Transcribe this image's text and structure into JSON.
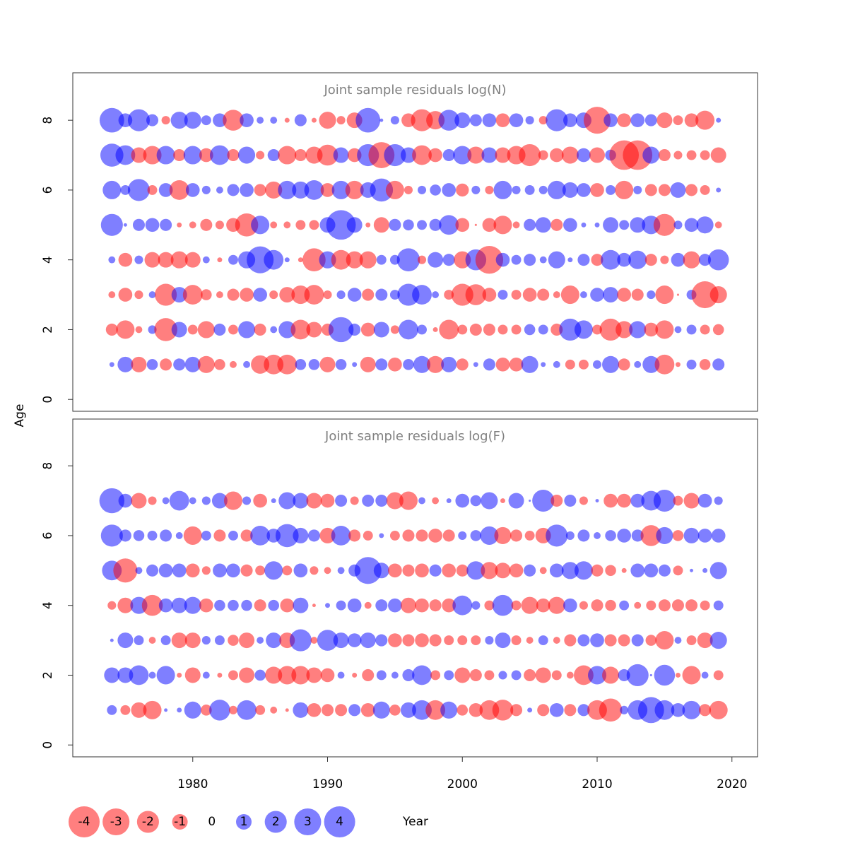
{
  "chart_data": [
    {
      "type": "bubble",
      "title": "Joint sample residuals log(N)",
      "x": [
        1974,
        1975,
        1976,
        1977,
        1978,
        1979,
        1980,
        1981,
        1982,
        1983,
        1984,
        1985,
        1986,
        1987,
        1988,
        1989,
        1990,
        1991,
        1992,
        1993,
        1994,
        1995,
        1996,
        1997,
        1998,
        1999,
        2000,
        2001,
        2002,
        2003,
        2004,
        2005,
        2006,
        2007,
        2008,
        2009,
        2010,
        2011,
        2012,
        2013,
        2014,
        2015,
        2016,
        2017,
        2018,
        2019
      ],
      "ages": [
        1,
        2,
        3,
        4,
        5,
        6,
        7,
        8
      ],
      "residuals": [
        [
          0.1,
          1,
          -1,
          0.5,
          -0.6,
          0.6,
          1,
          -1.2,
          -0.5,
          -0.2,
          0.2,
          -1.4,
          -1.6,
          -1.6,
          0.5,
          0.5,
          -1,
          0.5,
          0.1,
          -1,
          0.6,
          -0.8,
          0.5,
          1.2,
          -1.2,
          1,
          -0.6,
          0.1,
          0.6,
          -0.8,
          -0.8,
          1.2,
          0.1,
          0.2,
          -0.4,
          -0.4,
          0.3,
          1.2,
          -0.6,
          0.2,
          1.2,
          -1.6,
          -0.1,
          0.4,
          -0.5,
          0.6
        ],
        [
          -0.6,
          -1.4,
          -0.2,
          0.3,
          -2.2,
          1,
          -0.4,
          -1.2,
          0.6,
          -0.4,
          1.2,
          -0.6,
          0.2,
          1.2,
          -1.6,
          -1,
          -0.6,
          2.6,
          0.6,
          -0.8,
          1,
          -0.3,
          1.6,
          0.4,
          -0.1,
          -1.6,
          -0.4,
          -0.6,
          -0.6,
          -0.4,
          -0.4,
          0.5,
          0.4,
          -0.6,
          2,
          1.4,
          -0.4,
          -2,
          -1.2,
          1.2,
          -0.8,
          -1.4,
          0.2,
          0.4,
          -0.4,
          -0.5
        ],
        [
          -0.2,
          -0.8,
          -0.3,
          0.2,
          -2,
          1,
          -1.6,
          -0.5,
          -0.2,
          -0.6,
          -0.8,
          0.8,
          -0.3,
          -1,
          -1.4,
          -1.6,
          -0.3,
          0.3,
          0.8,
          -0.6,
          0.6,
          0.4,
          2,
          1.6,
          0.2,
          -0.4,
          -2,
          -1.8,
          -0.8,
          0.4,
          -0.4,
          -0.8,
          -0.6,
          -0.2,
          -1.4,
          0.2,
          0.8,
          1,
          -0.8,
          -0.6,
          0.3,
          -1.4,
          -0.02,
          0.4,
          -3,
          -1.2
        ],
        [
          0.2,
          -0.8,
          0.3,
          -1,
          -1,
          -1.2,
          -1,
          0.2,
          -0.1,
          0.4,
          1.2,
          3,
          1.6,
          0.1,
          -0.1,
          -2.2,
          1.2,
          -1.6,
          -1.2,
          -1.2,
          0.4,
          0.4,
          2.2,
          -0.3,
          1,
          0.6,
          -1.2,
          1.8,
          -3.2,
          0.8,
          0.4,
          0.6,
          0.2,
          1.2,
          0.1,
          0.6,
          -0.6,
          1.6,
          0.8,
          1.4,
          -0.6,
          -0.3,
          0.8,
          -1.2,
          0.6,
          1.8
        ],
        [
          2,
          0.05,
          0.6,
          0.8,
          0.6,
          -0.1,
          -0.2,
          -0.6,
          -0.3,
          -0.8,
          -2.2,
          1.4,
          -0.2,
          -0.2,
          -0.4,
          -0.4,
          1,
          3.6,
          1,
          -0.1,
          -1,
          0.6,
          0.5,
          0.4,
          0.6,
          1.6,
          -0.8,
          -0.02,
          -0.8,
          -1.4,
          -0.2,
          0.6,
          1,
          -0.6,
          0.8,
          0.1,
          0.1,
          1,
          0.4,
          1,
          1.4,
          -2,
          0.3,
          0.8,
          1.2,
          -0.2
        ],
        [
          1.4,
          0.4,
          2,
          -0.4,
          0.8,
          -1.6,
          0.8,
          0.3,
          0.2,
          0.6,
          0.8,
          -0.6,
          -1.2,
          1.4,
          1.2,
          1.6,
          -0.8,
          1.4,
          -1.4,
          1,
          2.2,
          -1.4,
          -0.3,
          0.3,
          0.5,
          0.8,
          -0.7,
          0.3,
          -0.3,
          1.4,
          0.3,
          0.4,
          0.3,
          1.4,
          1,
          0.8,
          -0.8,
          0.4,
          -1.4,
          0.3,
          -0.6,
          -0.6,
          1,
          -0.6,
          -0.4,
          0.1
        ],
        [
          2.2,
          1.6,
          -1,
          -1.4,
          1.4,
          -0.6,
          1.4,
          -0.8,
          1.6,
          -0.6,
          1.2,
          -0.3,
          0.6,
          -1.4,
          -0.6,
          -1.2,
          -1.8,
          1,
          -0.8,
          2,
          -2.8,
          2,
          1,
          -1.6,
          -0.8,
          0.6,
          1.4,
          -1.2,
          1,
          -1,
          -1.4,
          -2,
          -0.4,
          -0.8,
          -1.2,
          0.8,
          -1,
          0.5,
          -3.6,
          -3.6,
          1.2,
          -0.6,
          -0.3,
          -0.4,
          -0.4,
          -1
        ],
        [
          2.5,
          0.8,
          2,
          0.6,
          -0.3,
          1.2,
          1.2,
          0.4,
          0.8,
          -1.8,
          0.8,
          0.2,
          0.2,
          -0.1,
          0.6,
          -0.1,
          -1.2,
          -0.3,
          -1,
          2.5,
          0.05,
          0.3,
          -0.8,
          -2,
          -1.4,
          1.8,
          1,
          0.6,
          0.8,
          -0.8,
          0.8,
          0.3,
          -0.3,
          2,
          0.8,
          1,
          -3,
          0.8,
          -0.8,
          0.8,
          0.6,
          -1,
          -0.4,
          -0.8,
          -1.5,
          0.1
        ]
      ],
      "xlim": [
        1971.1,
        2021.9
      ],
      "ylim": [
        -0.34,
        9.36
      ],
      "yticks": [
        0,
        2,
        4,
        6,
        8
      ]
    },
    {
      "type": "bubble",
      "title": "Joint sample residuals log(F)",
      "x": [
        1974,
        1975,
        1976,
        1977,
        1978,
        1979,
        1980,
        1981,
        1982,
        1983,
        1984,
        1985,
        1986,
        1987,
        1988,
        1989,
        1990,
        1991,
        1992,
        1993,
        1994,
        1995,
        1996,
        1997,
        1998,
        1999,
        2000,
        2001,
        2002,
        2003,
        2004,
        2005,
        2006,
        2007,
        2008,
        2009,
        2010,
        2011,
        2012,
        2013,
        2014,
        2015,
        2016,
        2017,
        2018,
        2019
      ],
      "ages": [
        1,
        2,
        3,
        4,
        5,
        6,
        7
      ],
      "residuals": [
        [
          0.4,
          -0.4,
          -1,
          -1.4,
          0.05,
          0.1,
          1.2,
          -0.5,
          1.8,
          -0.3,
          1.6,
          -0.4,
          -0.2,
          -0.05,
          1,
          -0.8,
          -0.6,
          -0.6,
          0.6,
          -0.8,
          1.2,
          -0.5,
          1,
          1.6,
          -1.6,
          1.2,
          -0.5,
          -0.8,
          -1.6,
          -1.8,
          -0.6,
          0.1,
          -0.6,
          0.8,
          -0.6,
          0.6,
          -1.6,
          -2.2,
          0.3,
          1.6,
          2.8,
          1.6,
          0.8,
          1.4,
          -0.6,
          -1.4
        ],
        [
          1,
          1,
          1.6,
          0.2,
          1.4,
          -0.1,
          -1,
          0.2,
          -0.1,
          -0.4,
          -1,
          0.5,
          -1.2,
          -1.4,
          -1.4,
          -1,
          -0.8,
          0.2,
          -0.1,
          -0.6,
          0.4,
          0.2,
          0.6,
          1.6,
          -0.4,
          0.4,
          -1,
          -0.6,
          -0.4,
          0.3,
          0.4,
          -0.6,
          -1,
          -0.4,
          -0.2,
          -1.6,
          1.4,
          -1.2,
          0.6,
          2,
          0.02,
          1.8,
          -0.1,
          -1.4,
          0.2,
          -0.4
        ],
        [
          0.05,
          1,
          0.4,
          -0.2,
          0.4,
          -1,
          -1,
          0.3,
          0.4,
          -0.5,
          -1,
          0.2,
          1,
          -1,
          2,
          -0.2,
          1.8,
          1,
          0.8,
          1,
          0.6,
          -0.8,
          -0.6,
          -0.8,
          -0.6,
          -0.4,
          -0.4,
          -0.4,
          0.3,
          1,
          -0.4,
          -0.2,
          0.4,
          -0.2,
          -0.6,
          0.6,
          0.8,
          -0.6,
          -0.6,
          0.6,
          -0.5,
          -1.4,
          0.2,
          -0.4,
          -1,
          1.2
        ],
        [
          -0.3,
          -1,
          1.2,
          -1.8,
          0.8,
          1,
          1.2,
          -0.8,
          0.5,
          0.5,
          0.5,
          -0.6,
          0.5,
          -0.8,
          1,
          -0.05,
          0.1,
          0.4,
          0.8,
          -0.2,
          0.6,
          0.8,
          -1,
          -0.8,
          -0.6,
          -0.8,
          1.6,
          0.3,
          -0.4,
          1.8,
          -0.4,
          -1.2,
          -0.8,
          -1.2,
          0.8,
          -0.3,
          -0.6,
          -0.5,
          0.4,
          -0.2,
          -0.4,
          -0.6,
          -0.6,
          -0.6,
          -0.4,
          0.4
        ],
        [
          1.6,
          -2.4,
          0.2,
          0.6,
          0.8,
          0.8,
          -0.8,
          -0.3,
          0.8,
          0.8,
          -0.6,
          -0.4,
          1.4,
          -0.4,
          0.8,
          -0.3,
          -0.2,
          0.2,
          0.6,
          3,
          1,
          -0.8,
          -0.6,
          -0.8,
          0.6,
          -0.8,
          -0.6,
          1.4,
          -1.2,
          -1,
          -0.8,
          0.6,
          -0.2,
          0.8,
          1.2,
          1.4,
          -0.6,
          -0.5,
          -0.1,
          0.8,
          0.8,
          0.6,
          -0.4,
          0.05,
          0.1,
          1.2
        ],
        [
          2,
          0.6,
          0.5,
          0.4,
          0.6,
          0.2,
          -1.4,
          0.4,
          -0.6,
          0.4,
          -0.6,
          1.6,
          0.8,
          2.2,
          1,
          0.6,
          -1,
          1.6,
          -0.6,
          -0.4,
          0.1,
          -0.4,
          -0.6,
          -0.6,
          -0.8,
          -0.6,
          0.3,
          0.5,
          1.4,
          -1.2,
          -0.6,
          -0.4,
          -1,
          2,
          0.3,
          0.6,
          0.2,
          0.5,
          0.8,
          0.6,
          -1.8,
          1.2,
          -0.5,
          1,
          0.8,
          0.8
        ],
        [
          2.6,
          0.8,
          -1,
          -0.3,
          0.2,
          1.6,
          0.2,
          0.3,
          1,
          -1.4,
          0.3,
          -0.8,
          0.1,
          1.2,
          1,
          -1,
          -0.8,
          0.6,
          -0.3,
          0.6,
          0.6,
          -1.2,
          -1.4,
          0.2,
          -0.2,
          0.1,
          0.8,
          0.5,
          1.2,
          -0.1,
          1,
          0.02,
          2,
          -0.6,
          0.6,
          -0.3,
          0.05,
          -0.8,
          -0.8,
          0.8,
          1.6,
          2,
          -0.4,
          -1,
          0.8,
          0.3
        ]
      ],
      "xlim": [
        1971.1,
        2021.9
      ],
      "ylim": [
        -0.34,
        9.34
      ],
      "yticks": [
        0,
        2,
        4,
        6,
        8
      ],
      "xticks": [
        1980,
        1990,
        2000,
        2010,
        2020
      ]
    }
  ],
  "xlabel": "Year",
  "ylabel": "Age",
  "size_legend": [
    -4,
    -3,
    -2,
    -1,
    0,
    1,
    2,
    3,
    4
  ],
  "colors": {
    "negative": "#ff0000",
    "positive": "#0000ff",
    "opacity": 0.5
  }
}
